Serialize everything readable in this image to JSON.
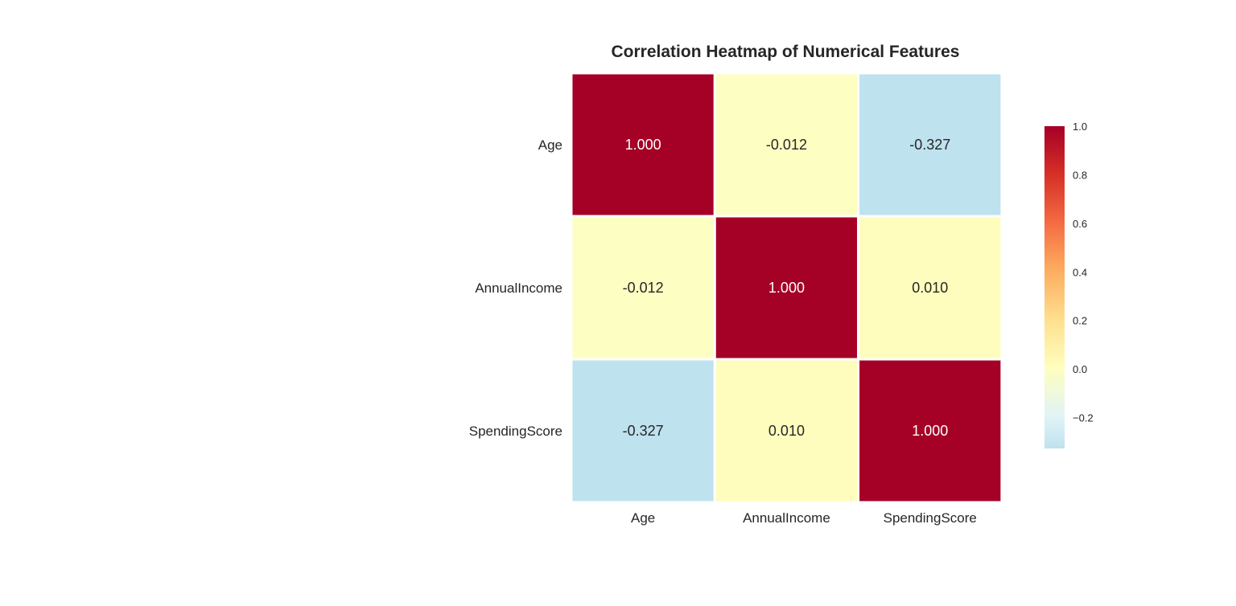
{
  "chart_data": {
    "type": "heatmap",
    "title": "Correlation Heatmap of Numerical Features",
    "row_labels": [
      "Age",
      "AnnualIncome",
      "SpendingScore"
    ],
    "col_labels": [
      "Age",
      "AnnualIncome",
      "SpendingScore"
    ],
    "values": [
      [
        1.0,
        -0.012,
        -0.327
      ],
      [
        -0.012,
        1.0,
        0.01
      ],
      [
        -0.327,
        0.01,
        1.0
      ]
    ],
    "cell_labels": [
      [
        "1.000",
        "-0.012",
        "-0.327"
      ],
      [
        "-0.012",
        "1.000",
        "0.010"
      ],
      [
        "-0.327",
        "0.010",
        "1.000"
      ]
    ],
    "colormap": "RdYlBu_r",
    "center": 0,
    "vmin": -0.327,
    "vmax": 1.0,
    "colorbar": {
      "ticks": [
        1.0,
        0.8,
        0.6,
        0.4,
        0.2,
        0.0,
        -0.2
      ],
      "tick_labels": [
        "1.0",
        "0.8",
        "0.6",
        "0.4",
        "0.2",
        "0.0",
        "−0.2"
      ]
    }
  }
}
